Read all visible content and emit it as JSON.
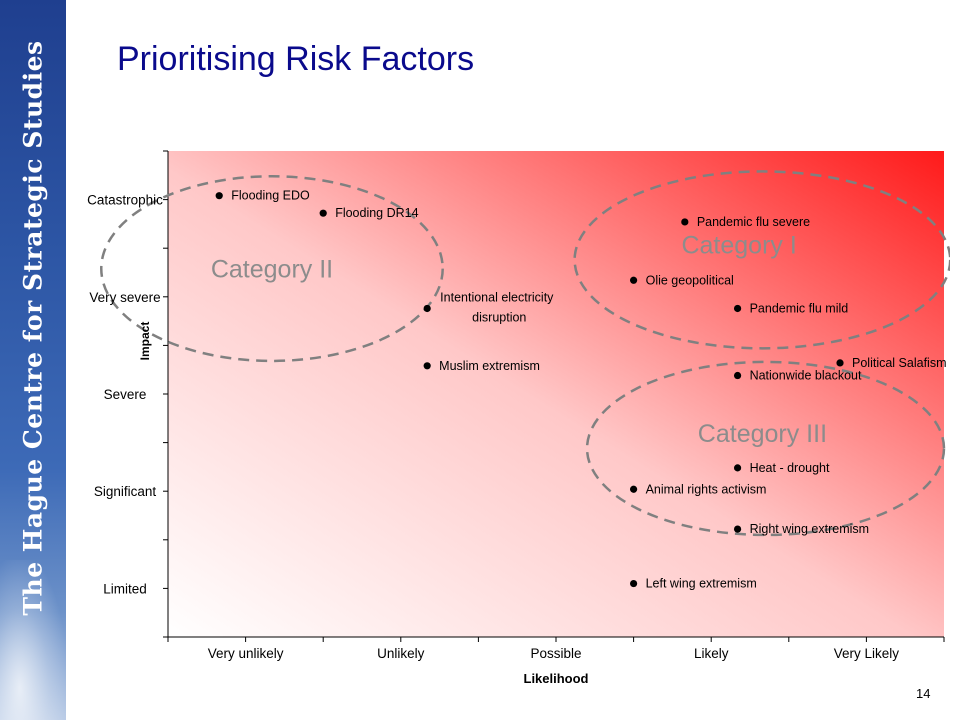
{
  "slide": {
    "title": "Prioritising Risk Factors",
    "sidebar_text": "The Hague Centre for Strategic Studies",
    "page_number": "14"
  },
  "colors": {
    "title": "#0a0a8c",
    "sidebar": "#2d56a5",
    "plot_gradient_start": "#ffffff",
    "plot_gradient_end": "#ff1a1a",
    "ellipse_stroke": "#808080",
    "category_label": "#8c8c8c"
  },
  "chart_data": {
    "type": "scatter",
    "title": "",
    "xlabel": "Likelihood",
    "ylabel": "Impact",
    "x_categories": [
      "Very unlikely",
      "Unlikely",
      "Possible",
      "Likely",
      "Very Likely"
    ],
    "y_categories": [
      "Limited",
      "Significant",
      "Severe",
      "Very severe",
      "Catastrophic"
    ],
    "xlim": [
      0.5,
      5.5
    ],
    "ylim": [
      0.5,
      5.5
    ],
    "grid": false,
    "background": "gradient white (bottom-left) to red (top-right)",
    "points": [
      {
        "label": "Flooding EDO",
        "x": 0.83,
        "y": 5.04
      },
      {
        "label": "Flooding DR14",
        "x": 1.5,
        "y": 4.86
      },
      {
        "label": "Pandemic flu severe",
        "x": 3.83,
        "y": 4.77
      },
      {
        "label": "Olie geopolitical",
        "x": 3.5,
        "y": 4.17
      },
      {
        "label": "Intentional electricity disruption",
        "x": 2.17,
        "y": 3.88
      },
      {
        "label": "Pandemic flu mild",
        "x": 4.17,
        "y": 3.88
      },
      {
        "label": "Muslim extremism",
        "x": 2.17,
        "y": 3.29
      },
      {
        "label": "Political Salafism",
        "x": 4.83,
        "y": 3.32
      },
      {
        "label": "Nationwide blackout",
        "x": 4.17,
        "y": 3.19
      },
      {
        "label": "Heat - drought",
        "x": 4.17,
        "y": 2.24
      },
      {
        "label": "Animal rights activism",
        "x": 3.5,
        "y": 2.02
      },
      {
        "label": "Right wing extremism",
        "x": 4.17,
        "y": 1.61
      },
      {
        "label": "Left wing extremism",
        "x": 3.5,
        "y": 1.05
      }
    ],
    "categories": [
      {
        "label": "Category I",
        "cx": 4.33,
        "cy": 4.38,
        "rx": 1.21,
        "ry": 0.91
      },
      {
        "label": "Category II",
        "cx": 1.17,
        "cy": 4.29,
        "rx": 1.1,
        "ry": 0.95
      },
      {
        "label": "Category III",
        "cx": 4.35,
        "cy": 2.44,
        "rx": 1.15,
        "ry": 0.89
      }
    ]
  }
}
